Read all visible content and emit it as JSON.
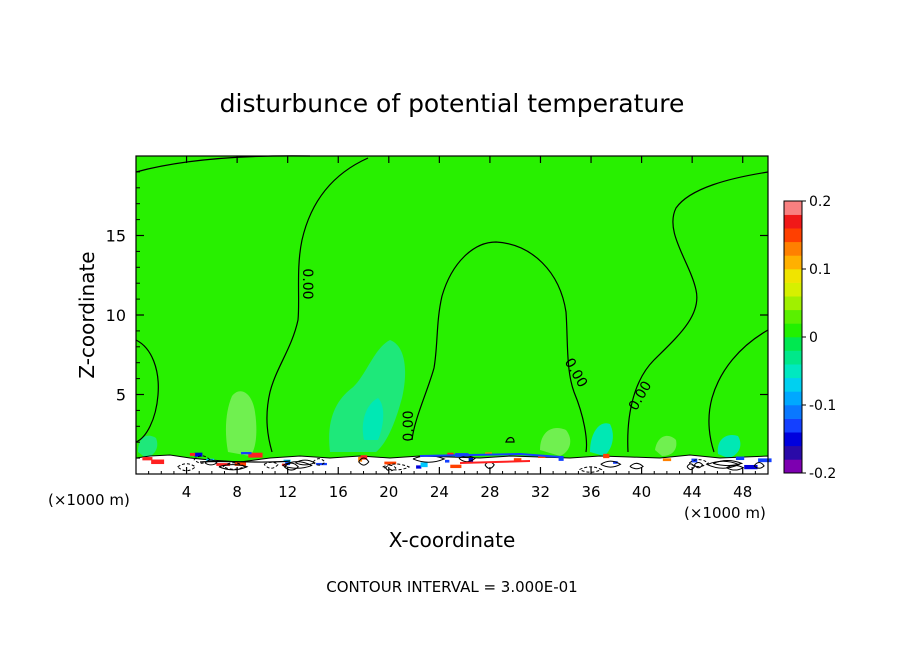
{
  "chart_data": {
    "type": "heatmap",
    "title": "disturbunce of potential temperature",
    "xlabel": "X-coordinate",
    "ylabel": "Z-coordinate",
    "x_unit": "(×1000 m)",
    "x_unit_right": "(×1000 m)",
    "xlim": [
      0,
      50
    ],
    "ylim": [
      0,
      20
    ],
    "x_ticks": [
      "4",
      "8",
      "12",
      "16",
      "20",
      "24",
      "28",
      "32",
      "36",
      "40",
      "44",
      "48"
    ],
    "y_ticks": [
      "5",
      "10",
      "15"
    ],
    "colorbar": {
      "range": [
        -0.2,
        0.2
      ],
      "tick_labels": [
        "0.2",
        "0.1",
        "0",
        "-0.1",
        "-0.2"
      ],
      "colors": [
        "#7d00b0",
        "#2a0aa8",
        "#0000dd",
        "#1440ff",
        "#0a78ff",
        "#00a8ff",
        "#00d0f0",
        "#00e8c0",
        "#00e88a",
        "#00e850",
        "#22f000",
        "#5af000",
        "#a0f000",
        "#d6f000",
        "#f0e400",
        "#ffb000",
        "#ff8000",
        "#ff4000",
        "#f01818",
        "#f88080"
      ]
    },
    "contour_labels": [
      "0.00",
      "0.00",
      "0.00",
      "0.00"
    ],
    "footer": "CONTOUR INTERVAL = 3.000E-01"
  }
}
